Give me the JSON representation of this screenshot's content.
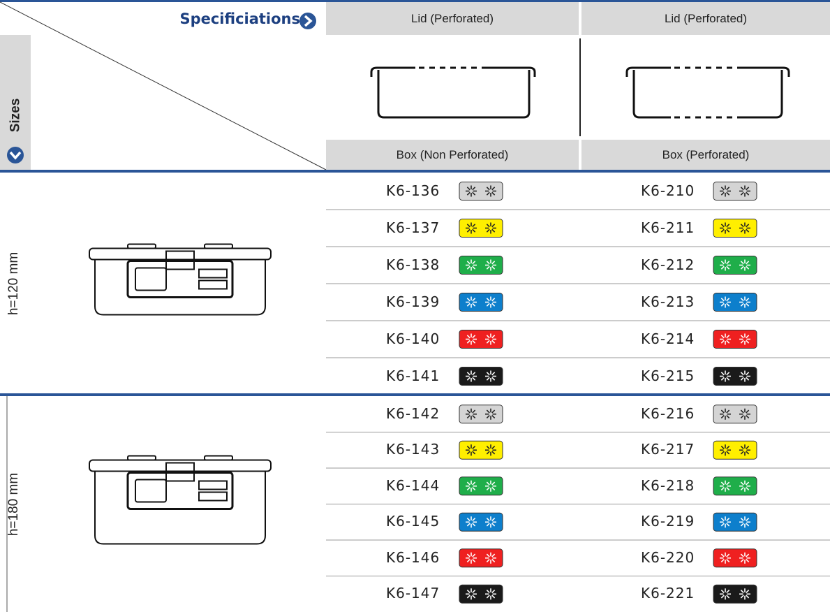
{
  "header": {
    "title": "Specificiations",
    "side_label": "Sizes",
    "columns": [
      {
        "lid": "Lid (Perforated)",
        "box": "Box (Non Perforated)"
      },
      {
        "lid": "Lid (Perforated)",
        "box": "Box (Perforated)"
      }
    ]
  },
  "sizes": [
    {
      "label": "h=120 mm",
      "rows": [
        [
          "K6-136",
          "K6-210"
        ],
        [
          "K6-137",
          "K6-211"
        ],
        [
          "K6-138",
          "K6-212"
        ],
        [
          "K6-139",
          "K6-213"
        ],
        [
          "K6-140",
          "K6-214"
        ],
        [
          "K6-141",
          "K6-215"
        ]
      ]
    },
    {
      "label": "h=180 mm",
      "rows": [
        [
          "K6-142",
          "K6-216"
        ],
        [
          "K6-143",
          "K6-217"
        ],
        [
          "K6-144",
          "K6-218"
        ],
        [
          "K6-145",
          "K6-219"
        ],
        [
          "K6-146",
          "K6-220"
        ],
        [
          "K6-147",
          "K6-221"
        ]
      ]
    }
  ]
}
